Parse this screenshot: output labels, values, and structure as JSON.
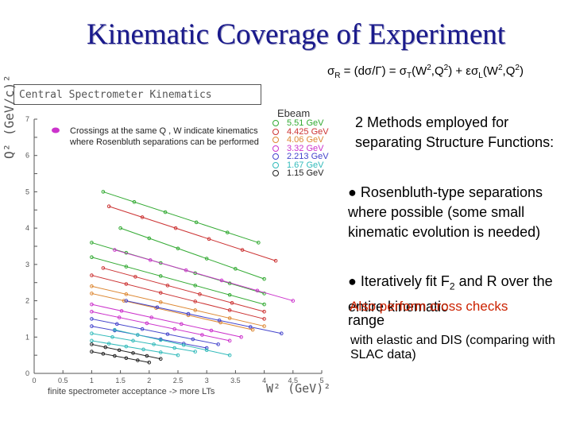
{
  "title": "Kinematic Coverage of Experiment",
  "formula": {
    "lhs": "σR = (dσ/Γ) = σT(W2,Q2) + εσL(W2,Q2)"
  },
  "text": {
    "methods": "2 Methods employed for separating Structure Functions:",
    "bullet1": "● Rosenbluth-type separations where possible (some small kinematic evolution is needed)",
    "bullet2_a": "● Iteratively fit F",
    "bullet2_sub": "2",
    "bullet2_b": " and R over the entire kinematic",
    "bullet2_range": "range",
    "also": "Also perform cross checks",
    "with": "with elastic and DIS (comparing with SLAC data)"
  },
  "chart": {
    "box_title": "Central Spectrometer Kinematics",
    "note": "Crossings at the same Q , W indicate kinematics where Rosenbluth separations can be performed",
    "xlabel": "W² (GeV)²",
    "ylabel": "Q² (GeV/c)²",
    "acceptance": "finite spectrometer acceptance -> more LTs",
    "legend_title": "Ebeam"
  },
  "chart_data": {
    "type": "line",
    "x_ticks": [
      "0",
      "0.5",
      "1",
      "1.5",
      "2",
      "2.5",
      "3",
      "3.5",
      "4",
      "4.5",
      "5"
    ],
    "y_ticks": [
      "0",
      "0.5",
      "1",
      "1.5",
      "2",
      "2.5",
      "3",
      "3.5",
      "4",
      "4.5",
      "5",
      "5.5",
      "6",
      "6.5",
      "7"
    ],
    "xlim": [
      0,
      5
    ],
    "ylim": [
      0,
      7
    ],
    "series": [
      {
        "name": "5.51 GeV",
        "color": "#33aa33"
      },
      {
        "name": "4.425 GeV",
        "color": "#cc3333"
      },
      {
        "name": "4.06 GeV",
        "color": "#dd8833"
      },
      {
        "name": "3.32 GeV",
        "color": "#cc33cc"
      },
      {
        "name": "2.213 GeV",
        "color": "#4444cc"
      },
      {
        "name": "1.67 GeV",
        "color": "#33bbbb"
      },
      {
        "name": "1.15 GeV",
        "color": "#222222"
      }
    ]
  }
}
